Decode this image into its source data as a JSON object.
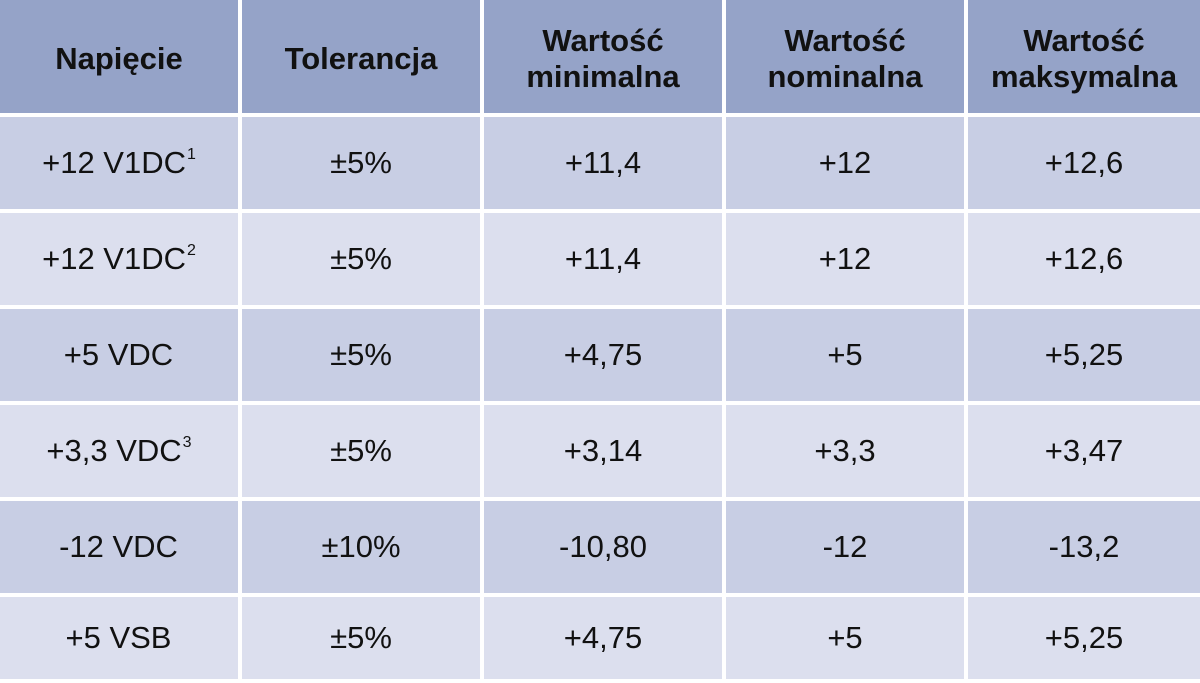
{
  "table": {
    "headers": [
      "Napięcie",
      "Tolerancja",
      "Wartość\nminimalna",
      "Wartość\nnominalna",
      "Wartość\nmaksymalna"
    ],
    "rows": [
      {
        "voltage": "+12 V1DC",
        "sup": "1",
        "tolerance": "±5%",
        "min": "+11,4",
        "nom": "+12",
        "max": "+12,6"
      },
      {
        "voltage": "+12 V1DC",
        "sup": "2",
        "tolerance": "±5%",
        "min": "+11,4",
        "nom": "+12",
        "max": "+12,6"
      },
      {
        "voltage": "+5 VDC",
        "sup": "",
        "tolerance": "±5%",
        "min": "+4,75",
        "nom": "+5",
        "max": "+5,25"
      },
      {
        "voltage": "+3,3 VDC",
        "sup": "3",
        "tolerance": "±5%",
        "min": "+3,14",
        "nom": "+3,3",
        "max": "+3,47"
      },
      {
        "voltage": "-12 VDC",
        "sup": "",
        "tolerance": "±10%",
        "min": "-10,80",
        "nom": "-12",
        "max": "-13,2"
      },
      {
        "voltage": "+5 VSB",
        "sup": "",
        "tolerance": "±5%",
        "min": "+4,75",
        "nom": "+5",
        "max": "+5,25"
      }
    ]
  },
  "colors": {
    "header_bg": "#95a3c8",
    "row_dark": "#c8cee4",
    "row_light": "#dcdfee"
  }
}
